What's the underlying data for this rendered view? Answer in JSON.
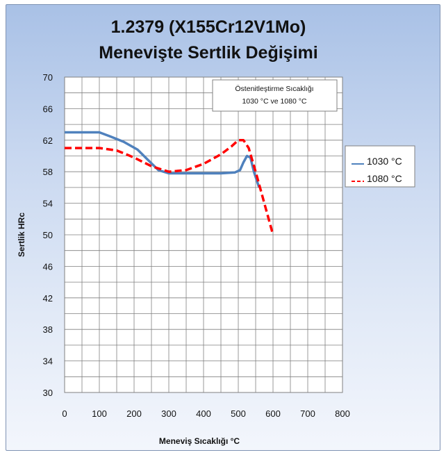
{
  "chart_data": {
    "type": "line",
    "title_line1": "1.2379 (X155Cr12V1Mo)",
    "title_line2": "Menevişte Sertlik Değişimi",
    "xlabel": "Meneviş Sıcaklığı  °C",
    "ylabel": "Sertlik HRc",
    "xlim": [
      0,
      800
    ],
    "ylim": [
      30,
      70
    ],
    "x_ticks": [
      0,
      100,
      200,
      300,
      400,
      500,
      600,
      700,
      800
    ],
    "y_ticks": [
      30,
      34,
      38,
      42,
      46,
      50,
      54,
      58,
      62,
      66,
      70
    ],
    "x_minor_step": 50,
    "y_minor_step": 2,
    "grid": true,
    "annotation": {
      "line1": "Östenitleştirme Sıcaklığı",
      "line2": "1030 °C ve 1080 °C"
    },
    "legend_position": "right",
    "series": [
      {
        "name": "1030 °C",
        "color": "#4f81bd",
        "style": "solid",
        "x": [
          0,
          100,
          130,
          170,
          210,
          240,
          270,
          300,
          350,
          400,
          450,
          490,
          505,
          515,
          525,
          535,
          545,
          560
        ],
        "y": [
          63,
          63,
          62.5,
          61.8,
          60.8,
          59.5,
          58.2,
          57.8,
          57.8,
          57.8,
          57.8,
          57.9,
          58.2,
          59.2,
          60,
          59.8,
          58,
          56
        ]
      },
      {
        "name": "1080 °C",
        "color": "#ff0000",
        "style": "dashed",
        "x": [
          0,
          100,
          150,
          200,
          250,
          300,
          350,
          400,
          450,
          480,
          500,
          515,
          530,
          550,
          575,
          600
        ],
        "y": [
          61,
          61,
          60.7,
          59.8,
          58.7,
          58,
          58.2,
          59,
          60.2,
          61.2,
          62,
          62,
          61,
          58,
          54,
          50
        ]
      }
    ]
  }
}
